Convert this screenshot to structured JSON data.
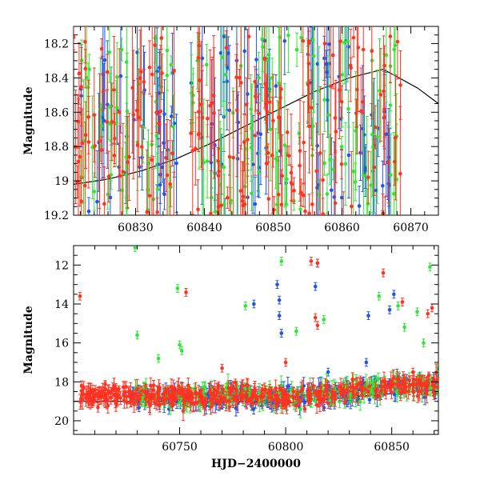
{
  "chart_data": [
    {
      "type": "scatter",
      "title": "",
      "xlabel": "",
      "ylabel": "Magnitude",
      "xlim": [
        60821,
        60874
      ],
      "ylim": [
        19.2,
        18.1
      ],
      "y_inverted": true,
      "grid": false,
      "xticks": [
        60830,
        60840,
        60850,
        60860,
        60870
      ],
      "yticks": [
        18.2,
        18.4,
        18.6,
        18.8,
        19,
        19.2
      ],
      "ytick_labels": [
        "18.2",
        "18.4",
        "18.6",
        "18.8",
        "19",
        "19.2"
      ],
      "model_curve": {
        "color": "#000000",
        "x": [
          60821,
          60826,
          60831,
          60836,
          60841,
          60846,
          60851,
          60856,
          60861,
          60866,
          60871,
          60874
        ],
        "y": [
          19.02,
          18.99,
          18.94,
          18.87,
          18.78,
          18.68,
          18.58,
          18.48,
          18.4,
          18.35,
          18.46,
          18.55
        ]
      },
      "series": [
        {
          "color": "#2255e6",
          "segments": [
            [
              60822,
              60836
            ],
            [
              60838,
              60852
            ],
            [
              60855,
              60867
            ]
          ],
          "count": 120
        },
        {
          "color": "#33e633",
          "segments": [
            [
              60822,
              60836
            ],
            [
              60838,
              60852
            ],
            [
              60852,
              60869
            ]
          ],
          "count": 140
        },
        {
          "color": "#ff3322",
          "segments": [
            [
              60821,
              60836
            ],
            [
              60838,
              60852
            ],
            [
              60852,
              60869
            ]
          ],
          "count": 190
        }
      ]
    },
    {
      "type": "scatter",
      "title": "",
      "xlabel": "HJD−2400000",
      "ylabel": "Magnitude",
      "xlim": [
        60700,
        60872
      ],
      "ylim": [
        20.7,
        11
      ],
      "y_inverted": true,
      "grid": false,
      "xticks": [
        60750,
        60800,
        60850
      ],
      "yticks": [
        12,
        14,
        16,
        18,
        20
      ],
      "ytick_labels": [
        "12",
        "14",
        "16",
        "18",
        "20"
      ],
      "model_curve": {
        "color": "#000000",
        "x": [
          60700,
          60720,
          60740,
          60760,
          60780,
          60800,
          60820,
          60840,
          60860,
          60872
        ],
        "y": [
          19.0,
          19.0,
          19.02,
          19.05,
          19.0,
          19.1,
          18.9,
          18.7,
          18.5,
          18.4
        ]
      },
      "series": [
        {
          "color": "#2255e6",
          "segments": [
            [
              60727,
              60872
            ]
          ],
          "count": 260,
          "outliers": [
            [
              60785,
              14.0
            ],
            [
              60796,
              13.0
            ],
            [
              60797,
              13.8
            ],
            [
              60797,
              14.6
            ],
            [
              60798,
              15.5
            ],
            [
              60815,
              11.9
            ],
            [
              60814,
              13.1
            ],
            [
              60839,
              14.6
            ],
            [
              60849,
              14.3
            ],
            [
              60851,
              13.5
            ],
            [
              60820,
              17.5
            ],
            [
              60838,
              17.0
            ]
          ]
        },
        {
          "color": "#33e633",
          "segments": [
            [
              60727,
              60872
            ]
          ],
          "count": 260,
          "outliers": [
            [
              60729,
              11.1
            ],
            [
              60730,
              15.6
            ],
            [
              60749,
              13.2
            ],
            [
              60750,
              16.1
            ],
            [
              60751,
              16.4
            ],
            [
              60781,
              14.1
            ],
            [
              60798,
              11.8
            ],
            [
              60818,
              14.8
            ],
            [
              60844,
              13.6
            ],
            [
              60853,
              14.1
            ],
            [
              60856,
              15.2
            ],
            [
              60862,
              14.4
            ],
            [
              60868,
              12.1
            ],
            [
              60865,
              16.0
            ],
            [
              60805,
              15.4
            ],
            [
              60740,
              16.8
            ]
          ]
        },
        {
          "color": "#ff3322",
          "segments": [
            [
              60703,
              60872
            ]
          ],
          "count": 420,
          "outliers": [
            [
              60703,
              13.6
            ],
            [
              60753,
              13.4
            ],
            [
              60812,
              11.8
            ],
            [
              60815,
              11.9
            ],
            [
              60814,
              14.7
            ],
            [
              60815,
              15.1
            ],
            [
              60846,
              12.4
            ],
            [
              60855,
              13.9
            ],
            [
              60867,
              14.5
            ],
            [
              60869,
              14.2
            ],
            [
              60860,
              17.5
            ],
            [
              60770,
              17.3
            ],
            [
              60800,
              17.0
            ]
          ]
        },
        {
          "color": "#ff3322",
          "segments": [
            [
              60704,
              60721
            ]
          ],
          "count": 14
        }
      ]
    }
  ]
}
